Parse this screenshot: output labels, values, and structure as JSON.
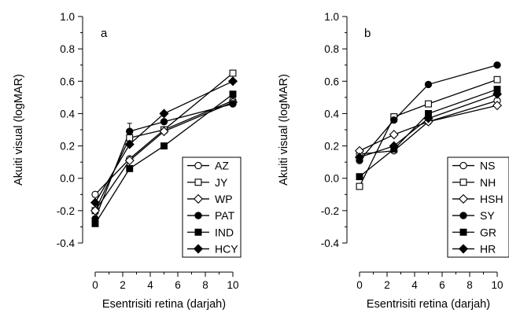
{
  "chart_data": [
    {
      "type": "line",
      "panel_label": "a",
      "xlabel": "Esentrisiti retina (darjah)",
      "ylabel": "Akuiti visual (logMAR)",
      "xlim": [
        -1,
        11
      ],
      "ylim": [
        -0.5,
        1.0
      ],
      "xticks": [
        0,
        2,
        4,
        6,
        8,
        10
      ],
      "yticks": [
        -0.4,
        -0.2,
        0.0,
        0.2,
        0.4,
        0.6,
        0.8,
        1.0
      ],
      "xtick_labels": [
        "0",
        "2",
        "4",
        "6",
        "8",
        "10"
      ],
      "ytick_labels": [
        "-0.4",
        "-0.2",
        "0.0",
        "0.2",
        "0.4",
        "0.6",
        "0.8",
        "1.0"
      ],
      "legend_position": "lower-right",
      "series": [
        {
          "name": "AZ",
          "marker": "circle-open",
          "x": [
            0,
            2.5,
            5,
            10
          ],
          "y": [
            -0.1,
            0.12,
            0.3,
            0.48
          ]
        },
        {
          "name": "JY",
          "marker": "square-open",
          "x": [
            0,
            2.5,
            5,
            10
          ],
          "y": [
            -0.2,
            0.25,
            0.3,
            0.65
          ]
        },
        {
          "name": "WP",
          "marker": "diamond-open",
          "x": [
            0,
            2.5,
            5,
            10
          ],
          "y": [
            -0.2,
            0.11,
            0.29,
            0.47
          ]
        },
        {
          "name": "PAT",
          "marker": "circle-filled",
          "x": [
            0,
            2.5,
            5,
            10
          ],
          "y": [
            -0.25,
            0.29,
            0.35,
            0.46
          ]
        },
        {
          "name": "IND",
          "marker": "square-filled",
          "x": [
            0,
            2.5,
            5,
            10
          ],
          "y": [
            -0.28,
            0.06,
            0.2,
            0.52
          ]
        },
        {
          "name": "HCY",
          "marker": "diamond-filled",
          "x": [
            0,
            2.5,
            5,
            10
          ],
          "y": [
            -0.15,
            0.21,
            0.4,
            0.6
          ]
        }
      ]
    },
    {
      "type": "line",
      "panel_label": "b",
      "xlabel": "Esentrisiti retina (darjah)",
      "ylabel": "Akuiti visual (logMAR)",
      "xlim": [
        -1,
        11
      ],
      "ylim": [
        -0.5,
        1.0
      ],
      "xticks": [
        0,
        2,
        4,
        6,
        8,
        10
      ],
      "yticks": [
        -0.4,
        -0.2,
        0.0,
        0.2,
        0.4,
        0.6,
        0.8,
        1.0
      ],
      "xtick_labels": [
        "0",
        "2",
        "4",
        "6",
        "8",
        "10"
      ],
      "ytick_labels": [
        "-0.4",
        "-0.2",
        "0.0",
        "0.2",
        "0.4",
        "0.6",
        "0.8",
        "1.0"
      ],
      "legend_position": "lower-right",
      "series": [
        {
          "name": "NS",
          "marker": "circle-open",
          "x": [
            0,
            2.5,
            5,
            10
          ],
          "y": [
            0.15,
            0.17,
            0.35,
            0.48
          ]
        },
        {
          "name": "NH",
          "marker": "square-open",
          "x": [
            0,
            2.5,
            5,
            10
          ],
          "y": [
            -0.05,
            0.38,
            0.46,
            0.61
          ]
        },
        {
          "name": "HSH",
          "marker": "diamond-open",
          "x": [
            0,
            2.5,
            5,
            10
          ],
          "y": [
            0.17,
            0.27,
            0.35,
            0.45
          ]
        },
        {
          "name": "SY",
          "marker": "circle-filled",
          "x": [
            0,
            2.5,
            5,
            10
          ],
          "y": [
            0.11,
            0.36,
            0.58,
            0.7
          ]
        },
        {
          "name": "GR",
          "marker": "square-filled",
          "x": [
            0,
            2.5,
            5,
            10
          ],
          "y": [
            0.01,
            0.18,
            0.4,
            0.55
          ]
        },
        {
          "name": "HR",
          "marker": "diamond-filled",
          "x": [
            0,
            2.5,
            5,
            10
          ],
          "y": [
            0.13,
            0.2,
            0.37,
            0.52
          ]
        }
      ]
    }
  ]
}
